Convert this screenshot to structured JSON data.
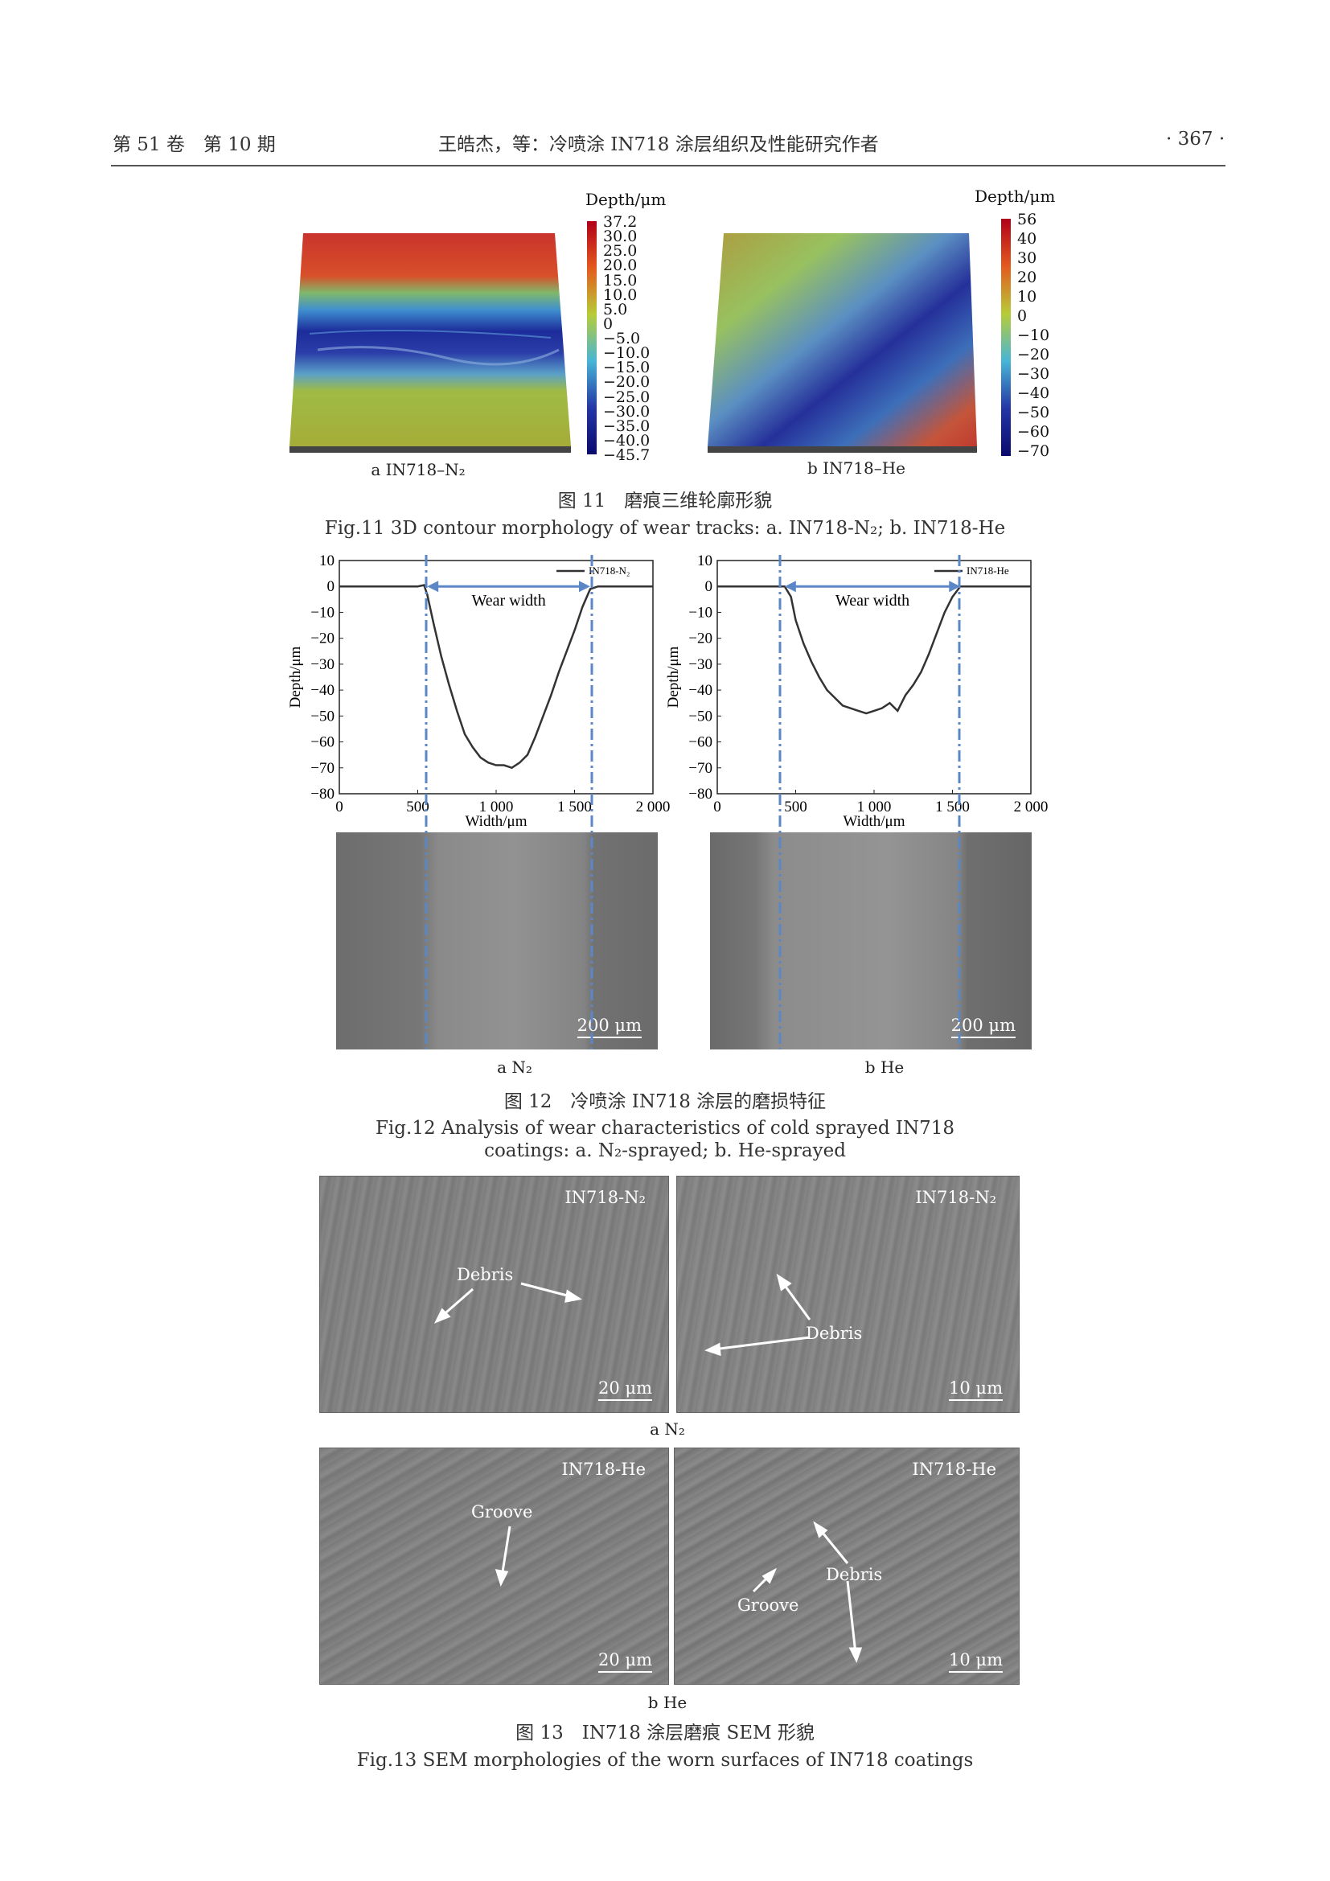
{
  "header": {
    "left": "第 51 卷　第 10 期",
    "center": "王皓杰，等：冷喷涂 IN718 涂层组织及性能研究作者",
    "right": "· 367 ·"
  },
  "fig11": {
    "caption_cn": "图 11　磨痕三维轮廓形貌",
    "caption_en": "Fig.11 3D contour morphology of wear tracks: a. IN718-N₂; b. IN718-He",
    "a": {
      "label": "a  IN718–N₂",
      "colorbar_title": "Depth/μm",
      "ticks": [
        "37.2",
        "30.0",
        "25.0",
        "20.0",
        "15.0",
        "10.0",
        "5.0",
        "0",
        "−5.0",
        "−10.0",
        "−15.0",
        "−20.0",
        "−25.0",
        "−30.0",
        "−35.0",
        "−40.0",
        "−45.7"
      ]
    },
    "b": {
      "label": "b  IN718–He",
      "colorbar_title": "Depth/μm",
      "ticks": [
        "56",
        "40",
        "30",
        "20",
        "10",
        "0",
        "−10",
        "−20",
        "−30",
        "−40",
        "−50",
        "−60",
        "−70"
      ]
    }
  },
  "fig12": {
    "caption_cn": "图 12　冷喷涂 IN718 涂层的磨损特征",
    "caption_en_1": "Fig.12 Analysis of wear characteristics of cold sprayed IN718",
    "caption_en_2": "coatings: a. N₂-sprayed; b. He-sprayed",
    "label_a": "a  N₂",
    "label_b": "b  He",
    "scale_a": "200 μm",
    "scale_b": "200 μm"
  },
  "chart_data": [
    {
      "type": "line",
      "xlabel": "Width/μm",
      "ylabel": "Depth/μm",
      "xlim": [
        0,
        2000
      ],
      "ylim": [
        -80,
        10
      ],
      "xticks": [
        "0",
        "500",
        "1 000",
        "1 500",
        "2 000"
      ],
      "yticks": [
        "10",
        "0",
        "−10",
        "−20",
        "−30",
        "−40",
        "−50",
        "−60",
        "−70",
        "−80"
      ],
      "legend": "top-right",
      "annotation": "Wear width",
      "wear_bounds": [
        560,
        1600
      ],
      "series": [
        {
          "name": "IN718-N₂",
          "x": [
            0,
            100,
            200,
            300,
            400,
            500,
            540,
            560,
            600,
            650,
            700,
            750,
            800,
            850,
            900,
            950,
            1000,
            1050,
            1100,
            1150,
            1200,
            1250,
            1300,
            1350,
            1400,
            1450,
            1500,
            1550,
            1600,
            1650,
            1700,
            1800,
            1900,
            2000
          ],
          "y": [
            0,
            0,
            0,
            0,
            0,
            0,
            0.5,
            -3,
            -14,
            -27,
            -38,
            -48,
            -57,
            -62,
            -66,
            -68,
            -69,
            -69,
            -70,
            -68,
            -65,
            -58,
            -50,
            -42,
            -33,
            -25,
            -17,
            -8,
            -1,
            0,
            0,
            0,
            0,
            0
          ]
        }
      ]
    },
    {
      "type": "line",
      "xlabel": "Width/μm",
      "ylabel": "Depth/μm",
      "xlim": [
        0,
        2000
      ],
      "ylim": [
        -80,
        10
      ],
      "xticks": [
        "0",
        "500",
        "1 000",
        "1 500",
        "2 000"
      ],
      "yticks": [
        "10",
        "0",
        "−10",
        "−20",
        "−30",
        "−40",
        "−50",
        "−60",
        "−70",
        "−80"
      ],
      "legend": "top-right",
      "annotation": "Wear width",
      "wear_bounds": [
        430,
        1550
      ],
      "series": [
        {
          "name": "IN718-He",
          "x": [
            0,
            100,
            200,
            300,
            400,
            430,
            470,
            500,
            550,
            600,
            650,
            700,
            750,
            800,
            850,
            900,
            950,
            1000,
            1050,
            1100,
            1150,
            1200,
            1250,
            1300,
            1350,
            1400,
            1450,
            1500,
            1550,
            1600,
            1700,
            1800,
            1900,
            2000
          ],
          "y": [
            0,
            0,
            0,
            0,
            0,
            0,
            -4,
            -13,
            -22,
            -29,
            -35,
            -40,
            -43,
            -46,
            -47,
            -48,
            -49,
            -48,
            -47,
            -45,
            -48,
            -42,
            -38,
            -33,
            -26,
            -18,
            -10,
            -4,
            0,
            0,
            0,
            0,
            0,
            0
          ]
        }
      ]
    }
  ],
  "fig13": {
    "caption_cn": "图 13　IN718 涂层磨痕 SEM 形貌",
    "caption_en": "Fig.13 SEM morphologies of the worn surfaces of IN718 coatings",
    "label_a": "a  N₂",
    "label_b": "b  He",
    "panels": [
      {
        "tag": "IN718-N₂",
        "scale": "20 μm",
        "anno": [
          "Debris"
        ]
      },
      {
        "tag": "IN718-N₂",
        "scale": "10 μm",
        "anno": [
          "Debris"
        ]
      },
      {
        "tag": "IN718-He",
        "scale": "20 μm",
        "anno": [
          "Groove"
        ]
      },
      {
        "tag": "IN718-He",
        "scale": "10 μm",
        "anno": [
          "Debris",
          "Groove"
        ]
      }
    ]
  }
}
